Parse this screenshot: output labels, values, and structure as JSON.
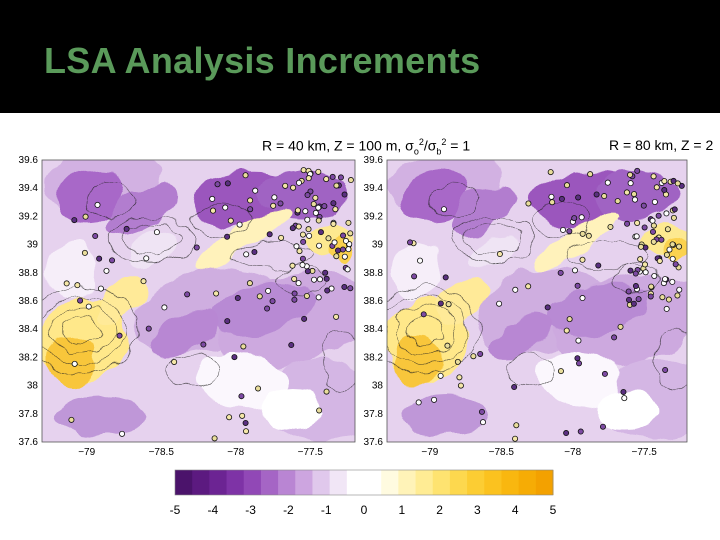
{
  "slide": {
    "title": "LSA Analysis Increments",
    "title_color": "#5a9a5a",
    "background_top": "#000000"
  },
  "chart_data": [
    {
      "type": "heatmap",
      "title": "R = 40 km, Z = 100 m, σo²/σb² = 1",
      "title_parts": {
        "r": "R = 40 km, ",
        "z": "Z = 100 m, ",
        "sig_o": "σ",
        "sub_o": "o",
        "sup_o": "2",
        "slash": "/",
        "sig_b": "σ",
        "sub_b": "b",
        "sup_b": "2",
        "tail": " = 1"
      },
      "y_ticks": [
        "39.6",
        "39.4",
        "39.2",
        "39",
        "38.8",
        "38.6",
        "38.4",
        "38.2",
        "38",
        "37.8",
        "37.6"
      ],
      "x_ticks": [
        "−79",
        "−78.5",
        "−78",
        "−77.5"
      ],
      "xlim": [
        -79.3,
        -77.2
      ],
      "ylim": [
        37.6,
        39.6
      ]
    },
    {
      "type": "heatmap",
      "title": "R = 80 km, Z = 2",
      "y_ticks": [
        "39.6",
        "39.4",
        "39.2",
        "39",
        "38.8",
        "38.6",
        "38.4",
        "38.2",
        "38",
        "37.8",
        "37.6"
      ],
      "x_ticks": [
        "−79",
        "−78.5",
        "−78",
        "−77.5"
      ],
      "xlim": [
        -79.3,
        -77.2
      ],
      "ylim": [
        37.6,
        39.6
      ]
    }
  ],
  "colorbar": {
    "ticks": [
      "-5",
      "-4",
      "-3",
      "-2",
      "-1",
      "0",
      "1",
      "2",
      "3",
      "4",
      "5"
    ],
    "colors": [
      "#4b136b",
      "#5c1a80",
      "#6c2493",
      "#7e33a6",
      "#9148b6",
      "#a565c5",
      "#b985d3",
      "#cda5e0",
      "#e0c8ec",
      "#f1e6f6",
      "#ffffff",
      "#ffffff",
      "#fffbe0",
      "#fff3b8",
      "#ffec94",
      "#fee370",
      "#fdd84e",
      "#fccd33",
      "#fbc21f",
      "#f9b70f",
      "#f6ac05",
      "#f3a100"
    ]
  }
}
